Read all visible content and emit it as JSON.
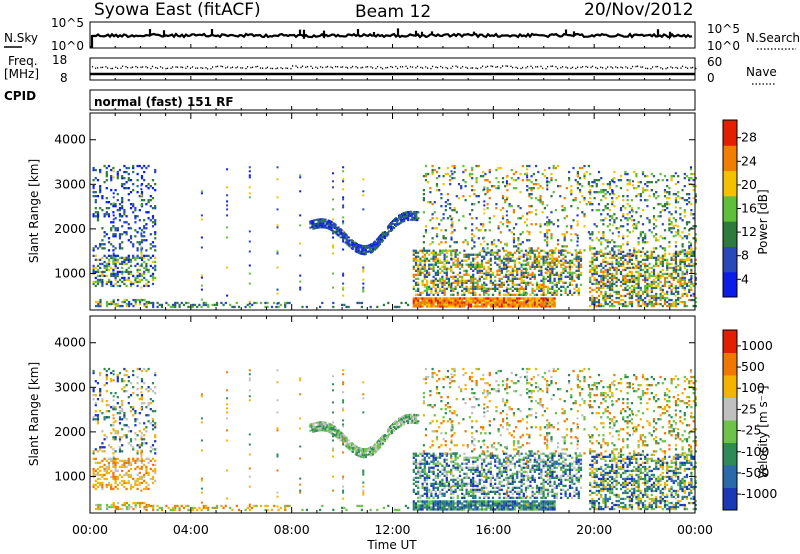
{
  "header": {
    "station": "Syowa East (fitACF)",
    "beam": "Beam 12",
    "date": "20/Nov/2012"
  },
  "panels": {
    "sky": {
      "left_label": "N.Sky",
      "left_ticks": [
        "10^5",
        "10^0"
      ],
      "right_label": "N.Search",
      "right_ticks": [
        "10^5",
        "10^0"
      ]
    },
    "freq": {
      "left_label_top": "Freq.",
      "left_label_bottom": "[MHz]",
      "left_ticks": [
        "18",
        "8"
      ],
      "right_label": "Nave",
      "right_ticks": [
        "60",
        "0"
      ]
    },
    "cpid": {
      "left_label": "CPID",
      "text": "normal (fast) 151 RF"
    }
  },
  "chart_data": [
    {
      "type": "heatmap",
      "title": "",
      "xlabel": "Time UT",
      "ylabel": "Slant Range [km]",
      "x_ticks": [
        "00:00",
        "04:00",
        "08:00",
        "12:00",
        "16:00",
        "20:00",
        "00:00"
      ],
      "xlim_hours": [
        0,
        24
      ],
      "ylim": [
        180,
        4600
      ],
      "y_ticks": [
        1000,
        2000,
        3000,
        4000
      ],
      "colorbar": {
        "label": "Power [dB]",
        "ticks": [
          "28",
          "24",
          "20",
          "16",
          "12",
          "8",
          "4"
        ],
        "range": [
          0,
          30
        ],
        "colors": [
          "#0a1ee6",
          "#2a49b8",
          "#2d7b3c",
          "#5fbf3a",
          "#f2c200",
          "#f07e00",
          "#e02000"
        ]
      }
    },
    {
      "type": "heatmap",
      "title": "",
      "xlabel": "Time UT",
      "ylabel": "Slant Range [km]",
      "x_ticks": [
        "00:00",
        "04:00",
        "08:00",
        "12:00",
        "16:00",
        "20:00",
        "00:00"
      ],
      "xlim_hours": [
        0,
        24
      ],
      "ylim": [
        180,
        4600
      ],
      "y_ticks": [
        1000,
        2000,
        3000,
        4000
      ],
      "colorbar": {
        "label": "Velocity [m s⁻¹]",
        "ticks": [
          "1000",
          "500",
          "100",
          "25",
          "-25",
          "-100",
          "-500",
          "-1000"
        ],
        "range": [
          -1000,
          1000
        ],
        "colors": [
          "#1a3ab5",
          "#2a6aa8",
          "#2e8b57",
          "#6cc24a",
          "#c0c0c0",
          "#f3b300",
          "#f07800",
          "#e02000"
        ]
      }
    }
  ],
  "x_axis": {
    "label": "Time UT",
    "ticks": [
      "00:00",
      "04:00",
      "08:00",
      "12:00",
      "16:00",
      "20:00",
      "00:00"
    ]
  }
}
